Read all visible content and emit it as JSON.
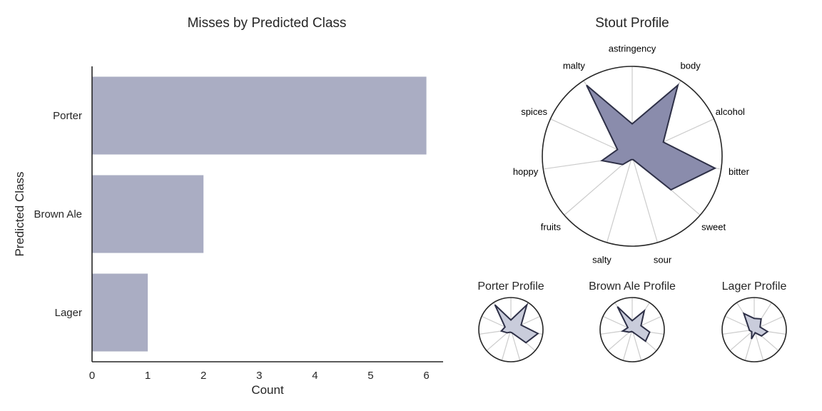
{
  "chart_data": [
    {
      "type": "bar",
      "orientation": "horizontal",
      "title": "Misses by Predicted Class",
      "xlabel": "Count",
      "ylabel": "Predicted Class",
      "categories": [
        "Porter",
        "Brown Ale",
        "Lager"
      ],
      "values": [
        6,
        2,
        1
      ],
      "xlim": [
        0,
        6.3
      ],
      "xticks": [
        "0",
        "1",
        "2",
        "3",
        "4",
        "5",
        "6"
      ],
      "bar_color": "#aaadc3",
      "grid": false
    },
    {
      "type": "radar",
      "title": "Stout Profile",
      "axes": [
        "astringency",
        "body",
        "alcohol",
        "bitter",
        "sweet",
        "sour",
        "salty",
        "fruits",
        "hoppy",
        "spices",
        "malty"
      ],
      "values": [
        0.36,
        0.94,
        0.38,
        0.93,
        0.57,
        0.04,
        0.04,
        0.14,
        0.34,
        0.18,
        0.94
      ],
      "fill_color": "#8a8cac",
      "line_color": "#2e3047"
    },
    {
      "type": "radar",
      "title": "Porter Profile",
      "axes": [
        "astringency",
        "body",
        "alcohol",
        "bitter",
        "sweet",
        "sour",
        "salty",
        "fruits",
        "hoppy",
        "spices",
        "malty"
      ],
      "values": [
        0.3,
        0.92,
        0.35,
        0.85,
        0.62,
        0.1,
        0.08,
        0.15,
        0.3,
        0.2,
        0.92
      ],
      "fill_color": "#c9ccdb",
      "line_color": "#2e3047"
    },
    {
      "type": "radar",
      "title": "Brown Ale Profile",
      "axes": [
        "astringency",
        "body",
        "alcohol",
        "bitter",
        "sweet",
        "sour",
        "salty",
        "fruits",
        "hoppy",
        "spices",
        "malty"
      ],
      "values": [
        0.28,
        0.7,
        0.3,
        0.55,
        0.55,
        0.08,
        0.06,
        0.12,
        0.3,
        0.15,
        0.85
      ],
      "fill_color": "#c9ccdb",
      "line_color": "#2e3047"
    },
    {
      "type": "radar",
      "title": "Lager Profile",
      "axes": [
        "astringency",
        "body",
        "alcohol",
        "bitter",
        "sweet",
        "sour",
        "salty",
        "fruits",
        "hoppy",
        "spices",
        "malty"
      ],
      "values": [
        0.35,
        0.4,
        0.2,
        0.42,
        0.3,
        0.1,
        0.3,
        0.1,
        0.15,
        0.2,
        0.6
      ],
      "fill_color": "#c9ccdb",
      "line_color": "#2e3047"
    }
  ]
}
